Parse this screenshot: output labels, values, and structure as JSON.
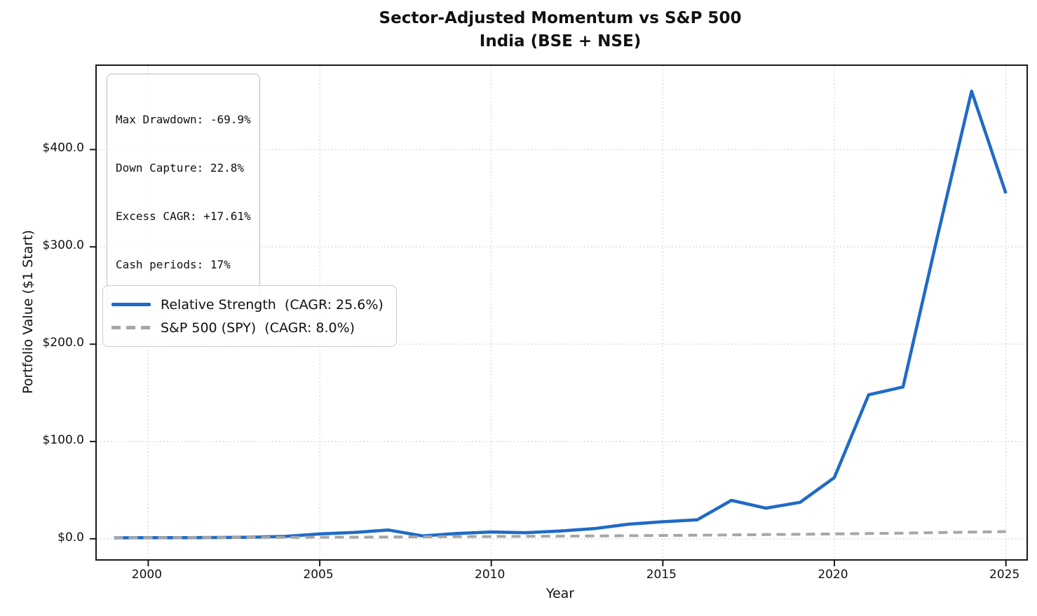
{
  "title": {
    "line1": "Sector-Adjusted Momentum vs S&P 500",
    "line2": "India (BSE + NSE)"
  },
  "stats_box": {
    "lines": [
      "Max Drawdown: -69.9%",
      "Down Capture: 22.8%",
      "Excess CAGR: +17.61%",
      "Cash periods: 17%"
    ]
  },
  "legend": {
    "entries": [
      {
        "label": "Relative Strength  (CAGR: 25.6%)",
        "style": "solid",
        "color": "#1f6bc6"
      },
      {
        "label": "S&P 500 (SPY)  (CAGR: 8.0%)",
        "style": "dashed",
        "color": "#a6a6a6"
      }
    ]
  },
  "chart_data": {
    "type": "line",
    "title": "Sector-Adjusted Momentum vs S&P 500 — India (BSE + NSE)",
    "xlabel": "Year",
    "ylabel": "Portfolio Value ($1 Start)",
    "x": [
      1999,
      2000,
      2001,
      2002,
      2003,
      2004,
      2005,
      2006,
      2007,
      2008,
      2009,
      2010,
      2011,
      2012,
      2013,
      2014,
      2015,
      2016,
      2017,
      2018,
      2019,
      2020,
      2021,
      2022,
      2023,
      2024,
      2025
    ],
    "series": [
      {
        "name": "Relative Strength  (CAGR: 25.6%)",
        "color": "#1f6bc6",
        "style": "solid",
        "width": 4.5,
        "values": [
          1.0,
          1.1,
          1.2,
          1.3,
          1.6,
          2.5,
          5.0,
          6.5,
          9.0,
          3.0,
          5.5,
          7.0,
          6.3,
          8.0,
          10.5,
          15.0,
          17.5,
          19.5,
          39.5,
          31.5,
          37.5,
          63.0,
          148.0,
          156.0,
          310.0,
          460.0,
          355.0
        ]
      },
      {
        "name": "S&P 500 (SPY)  (CAGR: 8.0%)",
        "color": "#a6a6a6",
        "style": "dashed",
        "width": 4,
        "values": [
          1.0,
          1.08,
          1.17,
          1.26,
          1.36,
          1.47,
          1.59,
          1.71,
          1.85,
          2.0,
          2.16,
          2.33,
          2.52,
          2.72,
          2.94,
          3.17,
          3.43,
          3.7,
          4.0,
          4.32,
          4.66,
          5.03,
          5.44,
          5.87,
          6.34,
          6.85,
          7.4
        ]
      }
    ],
    "xlim": [
      1998.5,
      2025.6
    ],
    "ylim": [
      -21,
      486
    ],
    "xticks": [
      2000,
      2005,
      2010,
      2015,
      2020,
      2025
    ],
    "xtick_labels": [
      "2000",
      "2005",
      "2010",
      "2015",
      "2020",
      "2025"
    ],
    "yticks": [
      0,
      100,
      200,
      300,
      400
    ],
    "ytick_labels": [
      "$0.0",
      "$100.0",
      "$200.0",
      "$300.0",
      "$400.0"
    ],
    "grid": "dotted",
    "grid_color": "#c9c9c9",
    "legend_position": "center-left"
  }
}
